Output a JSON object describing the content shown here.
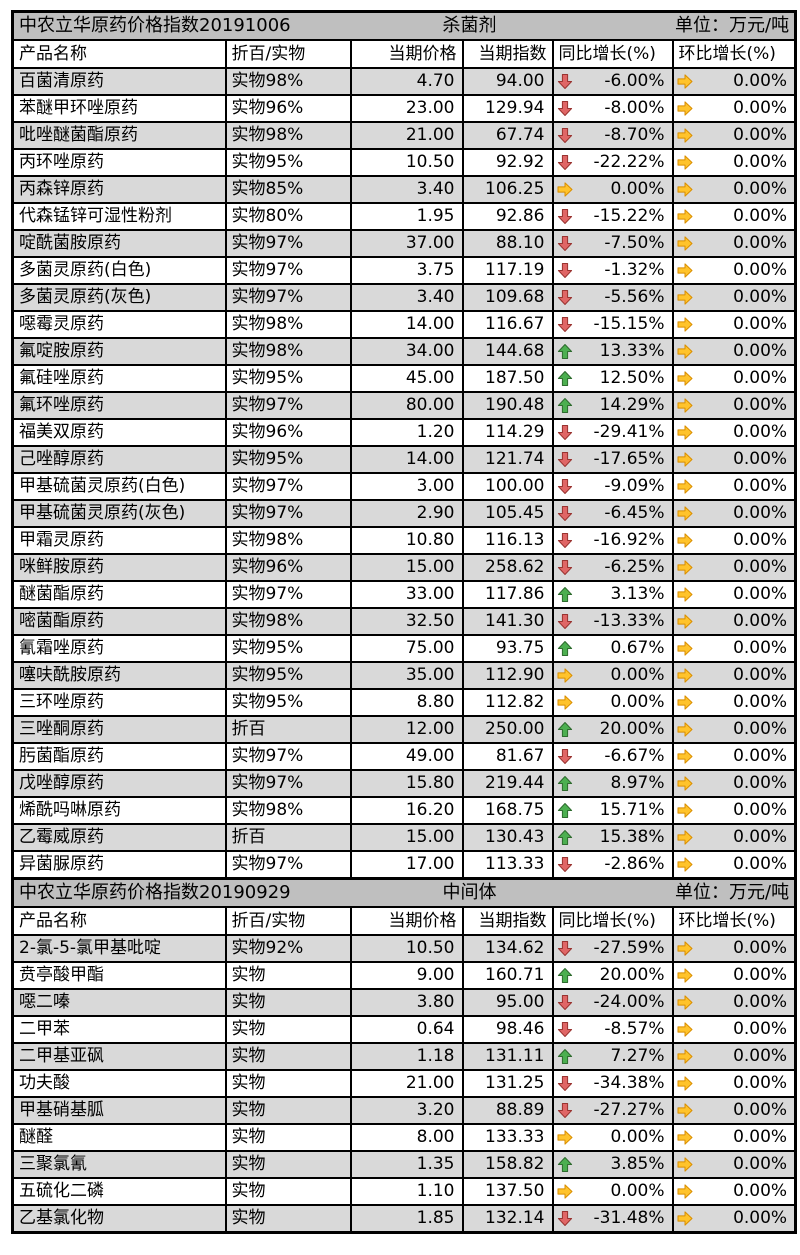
{
  "status_colors": {
    "up": "#4caf50",
    "down": "#e06666",
    "flat": "#ffc32b"
  },
  "icons": {
    "up": "up-arrow-icon",
    "down": "down-arrow-icon",
    "flat": "right-arrow-icon"
  },
  "tables": [
    {
      "title": "中农立华原药价格指数20191006",
      "category": "杀菌剂",
      "unit": "单位：万元/吨",
      "headers": [
        "产品名称",
        "折百/实物",
        "当期价格",
        "当期指数",
        "同比增长(%)",
        "环比增长(%)"
      ],
      "rows": [
        {
          "name": "百菌清原药",
          "spec": "实物98%",
          "price": "4.70",
          "index": "94.00",
          "yoy_dir": "down",
          "yoy": "-6.00%",
          "mom_dir": "flat",
          "mom": "0.00%"
        },
        {
          "name": "苯醚甲环唑原药",
          "spec": "实物96%",
          "price": "23.00",
          "index": "129.94",
          "yoy_dir": "down",
          "yoy": "-8.00%",
          "mom_dir": "flat",
          "mom": "0.00%"
        },
        {
          "name": "吡唑醚菌酯原药",
          "spec": "实物98%",
          "price": "21.00",
          "index": "67.74",
          "yoy_dir": "down",
          "yoy": "-8.70%",
          "mom_dir": "flat",
          "mom": "0.00%"
        },
        {
          "name": "丙环唑原药",
          "spec": "实物95%",
          "price": "10.50",
          "index": "92.92",
          "yoy_dir": "down",
          "yoy": "-22.22%",
          "mom_dir": "flat",
          "mom": "0.00%"
        },
        {
          "name": "丙森锌原药",
          "spec": "实物85%",
          "price": "3.40",
          "index": "106.25",
          "yoy_dir": "flat",
          "yoy": "0.00%",
          "mom_dir": "flat",
          "mom": "0.00%"
        },
        {
          "name": "代森锰锌可湿性粉剂",
          "spec": "实物80%",
          "price": "1.95",
          "index": "92.86",
          "yoy_dir": "down",
          "yoy": "-15.22%",
          "mom_dir": "flat",
          "mom": "0.00%"
        },
        {
          "name": "啶酰菌胺原药",
          "spec": "实物97%",
          "price": "37.00",
          "index": "88.10",
          "yoy_dir": "down",
          "yoy": "-7.50%",
          "mom_dir": "flat",
          "mom": "0.00%"
        },
        {
          "name": "多菌灵原药(白色)",
          "spec": "实物97%",
          "price": "3.75",
          "index": "117.19",
          "yoy_dir": "down",
          "yoy": "-1.32%",
          "mom_dir": "flat",
          "mom": "0.00%"
        },
        {
          "name": "多菌灵原药(灰色)",
          "spec": "实物97%",
          "price": "3.40",
          "index": "109.68",
          "yoy_dir": "down",
          "yoy": "-5.56%",
          "mom_dir": "flat",
          "mom": "0.00%"
        },
        {
          "name": "噁霉灵原药",
          "spec": "实物98%",
          "price": "14.00",
          "index": "116.67",
          "yoy_dir": "down",
          "yoy": "-15.15%",
          "mom_dir": "flat",
          "mom": "0.00%"
        },
        {
          "name": "氟啶胺原药",
          "spec": "实物98%",
          "price": "34.00",
          "index": "144.68",
          "yoy_dir": "up",
          "yoy": "13.33%",
          "mom_dir": "flat",
          "mom": "0.00%"
        },
        {
          "name": "氟硅唑原药",
          "spec": "实物95%",
          "price": "45.00",
          "index": "187.50",
          "yoy_dir": "up",
          "yoy": "12.50%",
          "mom_dir": "flat",
          "mom": "0.00%"
        },
        {
          "name": "氟环唑原药",
          "spec": "实物97%",
          "price": "80.00",
          "index": "190.48",
          "yoy_dir": "up",
          "yoy": "14.29%",
          "mom_dir": "flat",
          "mom": "0.00%"
        },
        {
          "name": "福美双原药",
          "spec": "实物96%",
          "price": "1.20",
          "index": "114.29",
          "yoy_dir": "down",
          "yoy": "-29.41%",
          "mom_dir": "flat",
          "mom": "0.00%"
        },
        {
          "name": "己唑醇原药",
          "spec": "实物95%",
          "price": "14.00",
          "index": "121.74",
          "yoy_dir": "down",
          "yoy": "-17.65%",
          "mom_dir": "flat",
          "mom": "0.00%"
        },
        {
          "name": "甲基硫菌灵原药(白色)",
          "spec": "实物97%",
          "price": "3.00",
          "index": "100.00",
          "yoy_dir": "down",
          "yoy": "-9.09%",
          "mom_dir": "flat",
          "mom": "0.00%"
        },
        {
          "name": "甲基硫菌灵原药(灰色)",
          "spec": "实物97%",
          "price": "2.90",
          "index": "105.45",
          "yoy_dir": "down",
          "yoy": "-6.45%",
          "mom_dir": "flat",
          "mom": "0.00%"
        },
        {
          "name": "甲霜灵原药",
          "spec": "实物98%",
          "price": "10.80",
          "index": "116.13",
          "yoy_dir": "down",
          "yoy": "-16.92%",
          "mom_dir": "flat",
          "mom": "0.00%"
        },
        {
          "name": "咪鲜胺原药",
          "spec": "实物96%",
          "price": "15.00",
          "index": "258.62",
          "yoy_dir": "down",
          "yoy": "-6.25%",
          "mom_dir": "flat",
          "mom": "0.00%"
        },
        {
          "name": "醚菌酯原药",
          "spec": "实物97%",
          "price": "33.00",
          "index": "117.86",
          "yoy_dir": "up",
          "yoy": "3.13%",
          "mom_dir": "flat",
          "mom": "0.00%"
        },
        {
          "name": "嘧菌酯原药",
          "spec": "实物98%",
          "price": "32.50",
          "index": "141.30",
          "yoy_dir": "down",
          "yoy": "-13.33%",
          "mom_dir": "flat",
          "mom": "0.00%"
        },
        {
          "name": "氰霜唑原药",
          "spec": "实物95%",
          "price": "75.00",
          "index": "93.75",
          "yoy_dir": "up",
          "yoy": "0.67%",
          "mom_dir": "flat",
          "mom": "0.00%"
        },
        {
          "name": "噻呋酰胺原药",
          "spec": "实物95%",
          "price": "35.00",
          "index": "112.90",
          "yoy_dir": "flat",
          "yoy": "0.00%",
          "mom_dir": "flat",
          "mom": "0.00%"
        },
        {
          "name": "三环唑原药",
          "spec": "实物95%",
          "price": "8.80",
          "index": "112.82",
          "yoy_dir": "flat",
          "yoy": "0.00%",
          "mom_dir": "flat",
          "mom": "0.00%"
        },
        {
          "name": "三唑酮原药",
          "spec": "折百",
          "price": "12.00",
          "index": "250.00",
          "yoy_dir": "up",
          "yoy": "20.00%",
          "mom_dir": "flat",
          "mom": "0.00%"
        },
        {
          "name": "肟菌酯原药",
          "spec": "实物97%",
          "price": "49.00",
          "index": "81.67",
          "yoy_dir": "down",
          "yoy": "-6.67%",
          "mom_dir": "flat",
          "mom": "0.00%"
        },
        {
          "name": "戊唑醇原药",
          "spec": "实物97%",
          "price": "15.80",
          "index": "219.44",
          "yoy_dir": "up",
          "yoy": "8.97%",
          "mom_dir": "flat",
          "mom": "0.00%"
        },
        {
          "name": "烯酰吗啉原药",
          "spec": "实物98%",
          "price": "16.20",
          "index": "168.75",
          "yoy_dir": "up",
          "yoy": "15.71%",
          "mom_dir": "flat",
          "mom": "0.00%"
        },
        {
          "name": "乙霉威原药",
          "spec": "折百",
          "price": "15.00",
          "index": "130.43",
          "yoy_dir": "up",
          "yoy": "15.38%",
          "mom_dir": "flat",
          "mom": "0.00%"
        },
        {
          "name": "异菌脲原药",
          "spec": "实物97%",
          "price": "17.00",
          "index": "113.33",
          "yoy_dir": "down",
          "yoy": "-2.86%",
          "mom_dir": "flat",
          "mom": "0.00%"
        }
      ]
    },
    {
      "title": "中农立华原药价格指数20190929",
      "category": "中间体",
      "unit": "单位：万元/吨",
      "headers": [
        "产品名称",
        "折百/实物",
        "当期价格",
        "当期指数",
        "同比增长(%)",
        "环比增长(%)"
      ],
      "rows": [
        {
          "name": "2-氯-5-氯甲基吡啶",
          "spec": "实物92%",
          "price": "10.50",
          "index": "134.62",
          "yoy_dir": "down",
          "yoy": "-27.59%",
          "mom_dir": "flat",
          "mom": "0.00%"
        },
        {
          "name": "贲亭酸甲酯",
          "spec": "实物",
          "price": "9.00",
          "index": "160.71",
          "yoy_dir": "up",
          "yoy": "20.00%",
          "mom_dir": "flat",
          "mom": "0.00%"
        },
        {
          "name": "噁二嗪",
          "spec": "实物",
          "price": "3.80",
          "index": "95.00",
          "yoy_dir": "down",
          "yoy": "-24.00%",
          "mom_dir": "flat",
          "mom": "0.00%"
        },
        {
          "name": "二甲苯",
          "spec": "实物",
          "price": "0.64",
          "index": "98.46",
          "yoy_dir": "down",
          "yoy": "-8.57%",
          "mom_dir": "flat",
          "mom": "0.00%"
        },
        {
          "name": "二甲基亚砜",
          "spec": "实物",
          "price": "1.18",
          "index": "131.11",
          "yoy_dir": "up",
          "yoy": "7.27%",
          "mom_dir": "flat",
          "mom": "0.00%"
        },
        {
          "name": "功夫酸",
          "spec": "实物",
          "price": "21.00",
          "index": "131.25",
          "yoy_dir": "down",
          "yoy": "-34.38%",
          "mom_dir": "flat",
          "mom": "0.00%"
        },
        {
          "name": "甲基硝基胍",
          "spec": "实物",
          "price": "3.20",
          "index": "88.89",
          "yoy_dir": "down",
          "yoy": "-27.27%",
          "mom_dir": "flat",
          "mom": "0.00%"
        },
        {
          "name": "醚醛",
          "spec": "实物",
          "price": "8.00",
          "index": "133.33",
          "yoy_dir": "flat",
          "yoy": "0.00%",
          "mom_dir": "flat",
          "mom": "0.00%"
        },
        {
          "name": "三聚氯氰",
          "spec": "实物",
          "price": "1.35",
          "index": "158.82",
          "yoy_dir": "up",
          "yoy": "3.85%",
          "mom_dir": "flat",
          "mom": "0.00%"
        },
        {
          "name": "五硫化二磷",
          "spec": "实物",
          "price": "1.10",
          "index": "137.50",
          "yoy_dir": "flat",
          "yoy": "0.00%",
          "mom_dir": "flat",
          "mom": "0.00%"
        },
        {
          "name": "乙基氯化物",
          "spec": "实物",
          "price": "1.85",
          "index": "132.14",
          "yoy_dir": "down",
          "yoy": "-31.48%",
          "mom_dir": "flat",
          "mom": "0.00%"
        }
      ]
    }
  ]
}
